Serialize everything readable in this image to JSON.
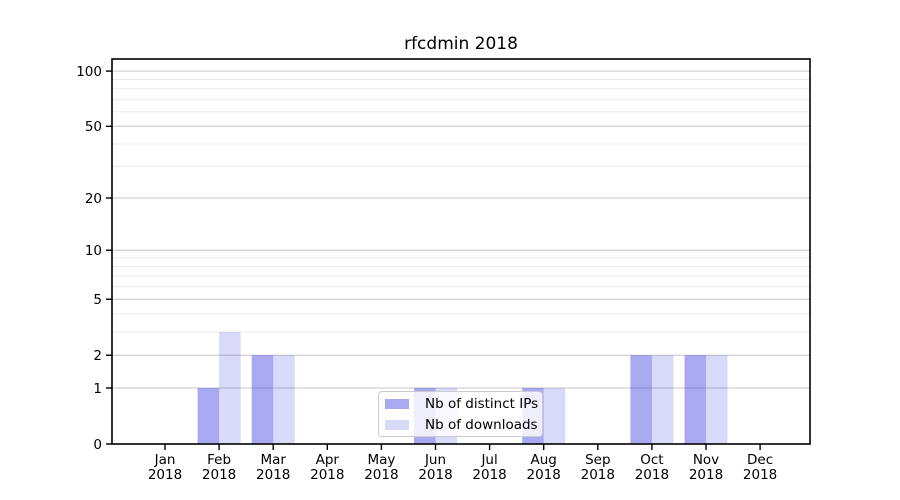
{
  "chart_data": {
    "type": "bar",
    "title": "rfcdmin 2018",
    "categories": [
      "Jan",
      "Feb",
      "Mar",
      "Apr",
      "May",
      "Jun",
      "Jul",
      "Aug",
      "Sep",
      "Oct",
      "Nov",
      "Dec"
    ],
    "year_label": "2018",
    "series": [
      {
        "key": "ips",
        "name": "Nb of distinct IPs",
        "color": "#a9a9f1",
        "fill_rgba": "rgba(64,64,224,0.45)",
        "values": [
          0,
          1,
          2,
          0,
          0,
          1,
          0,
          1,
          0,
          2,
          2,
          0
        ]
      },
      {
        "key": "downloads",
        "name": "Nb of downloads",
        "color": "#d9d9f8",
        "fill_rgba": "rgba(64,64,224,0.20)",
        "values": [
          0,
          3,
          2,
          0,
          0,
          1,
          0,
          1,
          0,
          2,
          2,
          0
        ]
      }
    ],
    "yscale": "log1p",
    "yticks_major": [
      0,
      1,
      2,
      5,
      10,
      20,
      50,
      100
    ],
    "yticks_minor": [
      3,
      4,
      6,
      7,
      8,
      9,
      30,
      40,
      60,
      70,
      80,
      90
    ],
    "ylim": [
      0,
      116
    ],
    "grid": true,
    "legend_position": "lower-center",
    "colors": {
      "grid_major": "#c6c6c6",
      "grid_minor": "#ebebeb",
      "axis": "#000000",
      "background": "#ffffff"
    }
  }
}
